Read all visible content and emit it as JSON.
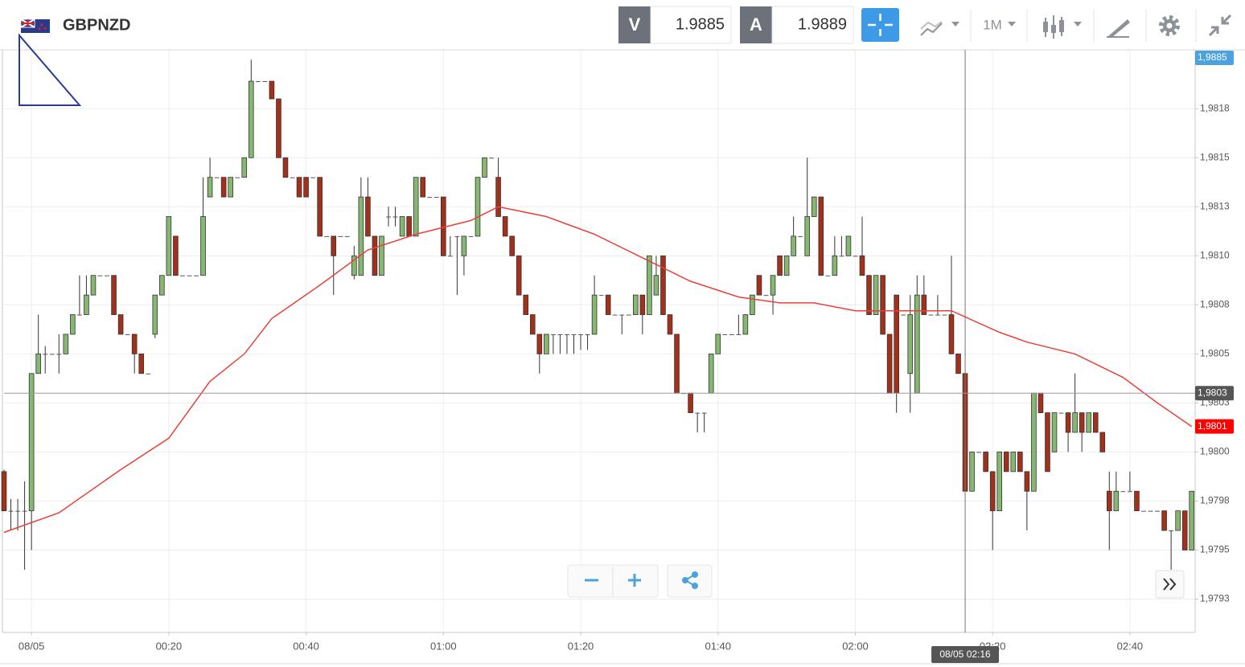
{
  "header": {
    "symbol": "GBPNZD",
    "bid_label": "V",
    "bid": 1.9885,
    "ask_label": "A",
    "ask": 1.9889,
    "timeframe": "1M"
  },
  "chart_data": {
    "type": "candlestick",
    "x": [
      -4,
      -3,
      -2,
      -1,
      0,
      1,
      2,
      3,
      4,
      5,
      6,
      7,
      8,
      9,
      10,
      11,
      12,
      13,
      14,
      15,
      16,
      17,
      18,
      19,
      20,
      21,
      22,
      23,
      24,
      25,
      26,
      27,
      28,
      29,
      30,
      31,
      32,
      33,
      34,
      35,
      36,
      37,
      38,
      39,
      40,
      41,
      42,
      43,
      44,
      45,
      46,
      47,
      48,
      49,
      50,
      51,
      52,
      53,
      54,
      55,
      56,
      57,
      58,
      59,
      60,
      61,
      62,
      63,
      64,
      65,
      66,
      67,
      68,
      69,
      70,
      71,
      72,
      73,
      74,
      75,
      76,
      77,
      78,
      79,
      80,
      81,
      82,
      83,
      84,
      85,
      86,
      87,
      88,
      89,
      90,
      91,
      92,
      93,
      94,
      95,
      96,
      97,
      98,
      99,
      100,
      101,
      102,
      103,
      104,
      105,
      106,
      107,
      108,
      109,
      110,
      111,
      112,
      113,
      114,
      115,
      116,
      117,
      118,
      119,
      120,
      121,
      122,
      123,
      124,
      125,
      126,
      127,
      128,
      129,
      130,
      131,
      132,
      133,
      134,
      135,
      136,
      137,
      138,
      139,
      140,
      141,
      142,
      143,
      144,
      145,
      146,
      147,
      148,
      149,
      150,
      151,
      152,
      153,
      154,
      155,
      156,
      157,
      158,
      159,
      160,
      161,
      162,
      163,
      164,
      165,
      166,
      167,
      168,
      169
    ],
    "open": [
      1.9799,
      1.9797,
      1.9797,
      1.9797,
      1.9797,
      1.9804,
      1.9805,
      1.9805,
      1.9805,
      1.9805,
      1.9806,
      1.9807,
      1.9807,
      1.9808,
      1.9809,
      1.9809,
      1.9809,
      1.9807,
      1.9806,
      1.9806,
      1.9805,
      1.9804,
      1.9806,
      1.9808,
      1.9809,
      1.9811,
      1.9809,
      1.9809,
      1.9809,
      1.9809,
      1.9813,
      1.9814,
      1.9814,
      1.9813,
      1.9814,
      1.9814,
      1.9815,
      1.98189,
      1.98189,
      1.98189,
      1.9818,
      1.9815,
      1.9814,
      1.9814,
      1.9814,
      1.9814,
      1.9814,
      1.9811,
      1.9811,
      1.9811,
      1.9811,
      1.9809,
      1.9809,
      1.9813,
      1.9811,
      1.9809,
      1.9812,
      1.9812,
      1.9811,
      1.9812,
      1.9811,
      1.9814,
      1.9813,
      1.9813,
      1.9813,
      1.981,
      1.9811,
      1.981,
      1.9811,
      1.9811,
      1.9814,
      1.9815,
      1.9814,
      1.9812,
      1.9811,
      1.981,
      1.9808,
      1.9807,
      1.9806,
      1.9805,
      1.9806,
      1.9806,
      1.9806,
      1.9806,
      1.9806,
      1.9806,
      1.9806,
      1.9808,
      1.9808,
      1.9807,
      1.9807,
      1.9807,
      1.9807,
      1.9808,
      1.9807,
      1.9808,
      1.981,
      1.9807,
      1.9806,
      1.9803,
      1.9803,
      1.9802,
      1.9802,
      1.9803,
      1.9805,
      1.9806,
      1.9806,
      1.9806,
      1.9806,
      1.9807,
      1.9809,
      1.9808,
      1.9808,
      1.981,
      1.9809,
      1.981,
      1.9811,
      1.981,
      1.9812,
      1.9813,
      1.9809,
      1.9809,
      1.981,
      1.981,
      1.981,
      1.981,
      1.9809,
      1.9807,
      1.9809,
      1.9806,
      1.9808,
      1.9807,
      1.9804,
      1.9803,
      1.9808,
      1.9807,
      1.9807,
      1.9807,
      1.9807,
      1.9805,
      1.9804,
      1.9798,
      1.98,
      1.98,
      1.9799,
      1.9797,
      1.98,
      1.9799,
      1.98,
      1.9799,
      1.9798,
      1.9803,
      1.9802,
      1.98,
      1.9802,
      1.9802,
      1.9801,
      1.9802,
      1.9801,
      1.9802,
      1.9801,
      1.9798,
      1.9797,
      1.9798,
      1.9798,
      1.9798,
      1.9797,
      1.9797,
      1.9797,
      1.9797,
      1.9796,
      1.9796,
      1.9797,
      1.9795
    ],
    "high": [
      1.97991,
      1.97976,
      1.97976,
      1.97985,
      1.9804,
      1.9807,
      1.98054,
      1.9805,
      1.9806,
      1.9806,
      1.9807,
      1.9809,
      1.9809,
      1.9809,
      1.9809,
      1.9809,
      1.9809,
      1.9807,
      1.9806,
      1.9806,
      1.9805,
      1.9804,
      1.9808,
      1.9809,
      1.9812,
      1.9811,
      1.9809,
      1.9809,
      1.9809,
      1.9814,
      1.9815,
      1.9814,
      1.9814,
      1.9814,
      1.9814,
      1.9815,
      1.982,
      1.98189,
      1.98189,
      1.98189,
      1.9818,
      1.9815,
      1.9814,
      1.9814,
      1.9814,
      1.9814,
      1.9814,
      1.9811,
      1.9811,
      1.9811,
      1.9811,
      1.98105,
      1.9814,
      1.9814,
      1.9811,
      1.9811,
      1.98125,
      1.98125,
      1.9812,
      1.9812,
      1.9814,
      1.9814,
      1.9813,
      1.9813,
      1.9813,
      1.9811,
      1.9811,
      1.9811,
      1.9811,
      1.9814,
      1.9815,
      1.9815,
      1.9815,
      1.9812,
      1.9811,
      1.981,
      1.9808,
      1.9807,
      1.9806,
      1.9806,
      1.9806,
      1.9806,
      1.9806,
      1.9806,
      1.9806,
      1.9806,
      1.9809,
      1.9808,
      1.9808,
      1.9807,
      1.9807,
      1.9807,
      1.9808,
      1.9808,
      1.981,
      1.981,
      1.981,
      1.9807,
      1.9806,
      1.9803,
      1.9803,
      1.9802,
      1.9802,
      1.9805,
      1.9806,
      1.9806,
      1.9806,
      1.9807,
      1.9807,
      1.9808,
      1.9809,
      1.9808,
      1.9809,
      1.981,
      1.981,
      1.9812,
      1.9811,
      1.9815,
      1.9813,
      1.9813,
      1.9809,
      1.9811,
      1.9811,
      1.9811,
      1.981,
      1.9812,
      1.9809,
      1.9809,
      1.9809,
      1.9806,
      1.9808,
      1.9807,
      1.9808,
      1.9809,
      1.9809,
      1.9807,
      1.9808,
      1.9807,
      1.981,
      1.9805,
      1.9804,
      1.98,
      1.98,
      1.98,
      1.9799,
      1.98,
      1.98,
      1.98,
      1.98,
      1.9799,
      1.9803,
      1.9803,
      1.9802,
      1.9802,
      1.9802,
      1.9802,
      1.9804,
      1.9802,
      1.9802,
      1.9802,
      1.9801,
      1.9799,
      1.9799,
      1.9798,
      1.9799,
      1.9798,
      1.9797,
      1.9797,
      1.9797,
      1.9797,
      1.9796,
      1.9797,
      1.9797,
      1.9798
    ],
    "low": [
      1.9797,
      1.9796,
      1.9796,
      1.9794,
      1.9795,
      1.9804,
      1.9804,
      1.9805,
      1.9804,
      1.9805,
      1.9806,
      1.9807,
      1.9807,
      1.9808,
      1.9809,
      1.9809,
      1.9807,
      1.9806,
      1.9806,
      1.9804,
      1.9804,
      1.9804,
      1.98058,
      1.9808,
      1.9809,
      1.9809,
      1.9809,
      1.9809,
      1.9809,
      1.9809,
      1.9813,
      1.9814,
      1.9813,
      1.9813,
      1.9814,
      1.9814,
      1.9815,
      1.98189,
      1.98189,
      1.9818,
      1.9815,
      1.9814,
      1.9814,
      1.9813,
      1.9813,
      1.9814,
      1.9811,
      1.9811,
      1.9808,
      1.9811,
      1.9811,
      1.98088,
      1.9809,
      1.9811,
      1.9809,
      1.9809,
      1.98115,
      1.98115,
      1.9811,
      1.9811,
      1.9811,
      1.9813,
      1.9813,
      1.9813,
      1.981,
      1.981,
      1.9808,
      1.9809,
      1.9811,
      1.9811,
      1.9814,
      1.9815,
      1.9812,
      1.9811,
      1.981,
      1.9808,
      1.9807,
      1.9806,
      1.9804,
      1.9805,
      1.9805,
      1.9805,
      1.9805,
      1.9805,
      1.98052,
      1.98052,
      1.9806,
      1.9808,
      1.9807,
      1.9807,
      1.9806,
      1.9807,
      1.9807,
      1.9806,
      1.9807,
      1.9808,
      1.9807,
      1.9806,
      1.9803,
      1.9803,
      1.9802,
      1.9801,
      1.9801,
      1.9803,
      1.9805,
      1.9806,
      1.9806,
      1.9806,
      1.9806,
      1.9807,
      1.9808,
      1.9808,
      1.9807,
      1.9809,
      1.9809,
      1.981,
      1.9811,
      1.981,
      1.9812,
      1.9809,
      1.9809,
      1.9809,
      1.981,
      1.981,
      1.981,
      1.9809,
      1.9807,
      1.9807,
      1.9806,
      1.9803,
      1.9802,
      1.9807,
      1.9802,
      1.9803,
      1.9807,
      1.9807,
      1.9807,
      1.9807,
      1.9805,
      1.9804,
      1.9798,
      1.9798,
      1.98,
      1.9799,
      1.9795,
      1.9797,
      1.9799,
      1.9799,
      1.9799,
      1.9796,
      1.9798,
      1.9802,
      1.9799,
      1.98,
      1.9802,
      1.98,
      1.9801,
      1.98,
      1.9801,
      1.9801,
      1.98,
      1.9795,
      1.9797,
      1.9798,
      1.9798,
      1.9797,
      1.9797,
      1.9797,
      1.9797,
      1.9796,
      1.9794,
      1.9796,
      1.9795,
      1.9795
    ],
    "close": [
      1.9797,
      1.9797,
      1.9797,
      1.9797,
      1.9804,
      1.9805,
      1.9805,
      1.9805,
      1.9805,
      1.9806,
      1.9807,
      1.9807,
      1.9808,
      1.9809,
      1.9809,
      1.9809,
      1.9807,
      1.9806,
      1.9806,
      1.9805,
      1.9804,
      1.9804,
      1.9808,
      1.9809,
      1.9812,
      1.9809,
      1.9809,
      1.9809,
      1.9809,
      1.9812,
      1.9814,
      1.9814,
      1.9813,
      1.9814,
      1.9814,
      1.9815,
      1.98189,
      1.98189,
      1.98189,
      1.9818,
      1.9815,
      1.9814,
      1.9814,
      1.9813,
      1.9813,
      1.9814,
      1.9811,
      1.9811,
      1.981,
      1.9811,
      1.9811,
      1.981,
      1.9813,
      1.9811,
      1.9809,
      1.9811,
      1.9812,
      1.9812,
      1.9812,
      1.9811,
      1.9814,
      1.9813,
      1.9813,
      1.9813,
      1.981,
      1.981,
      1.9811,
      1.9811,
      1.9811,
      1.9814,
      1.9815,
      1.9815,
      1.9812,
      1.9811,
      1.981,
      1.9808,
      1.9807,
      1.9806,
      1.9805,
      1.9806,
      1.9806,
      1.9806,
      1.9806,
      1.9806,
      1.9806,
      1.9806,
      1.9808,
      1.9808,
      1.9807,
      1.9807,
      1.9807,
      1.9807,
      1.9808,
      1.9807,
      1.981,
      1.9809,
      1.9807,
      1.9806,
      1.9803,
      1.9803,
      1.9802,
      1.9802,
      1.9802,
      1.9805,
      1.9806,
      1.9806,
      1.9806,
      1.9806,
      1.9807,
      1.9808,
      1.9808,
      1.9808,
      1.9809,
      1.9809,
      1.981,
      1.9811,
      1.9811,
      1.9812,
      1.9813,
      1.9809,
      1.9809,
      1.981,
      1.981,
      1.9811,
      1.981,
      1.9809,
      1.9807,
      1.9809,
      1.9806,
      1.9803,
      1.9803,
      1.9807,
      1.9807,
      1.9808,
      1.9807,
      1.9807,
      1.9807,
      1.9807,
      1.9805,
      1.9804,
      1.9798,
      1.98,
      1.98,
      1.9799,
      1.9797,
      1.98,
      1.9799,
      1.98,
      1.9799,
      1.9798,
      1.9803,
      1.9802,
      1.9799,
      1.9802,
      1.9802,
      1.9801,
      1.9802,
      1.9801,
      1.9802,
      1.9801,
      1.98,
      1.9797,
      1.9798,
      1.9798,
      1.9798,
      1.9797,
      1.9797,
      1.9797,
      1.9797,
      1.9796,
      1.9796,
      1.9797,
      1.9795,
      1.9798
    ],
    "up_color": "#86b872",
    "down_color": "#a3301b",
    "moving_average": {
      "color": "#e8413a",
      "x": [
        -4,
        4,
        13,
        20,
        26,
        31,
        35,
        42,
        49,
        56,
        64,
        68,
        75,
        82,
        89,
        96,
        103,
        109,
        114,
        120,
        127,
        134,
        141,
        145,
        152,
        159,
        164,
        169
      ],
      "values": [
        1.97959,
        1.97969,
        1.97991,
        1.98007,
        1.98036,
        1.9805,
        1.98068,
        1.98085,
        1.98103,
        1.98111,
        1.98118,
        1.98125,
        1.9812,
        1.98111,
        1.98099,
        1.98087,
        1.98079,
        1.98076,
        1.98076,
        1.98072,
        1.98072,
        1.98072,
        1.98061,
        1.98056,
        1.9805,
        1.98038,
        1.98025,
        1.98013
      ]
    },
    "xlim": [
      -4,
      169.5
    ],
    "xticks": [
      {
        "value": 0,
        "label": "08/05"
      },
      {
        "value": 20,
        "label": "00:20"
      },
      {
        "value": 40,
        "label": "00:40"
      },
      {
        "value": 60,
        "label": "01:00"
      },
      {
        "value": 80,
        "label": "01:20"
      },
      {
        "value": 100,
        "label": "01:40"
      },
      {
        "value": 120,
        "label": "02:00"
      },
      {
        "value": 140,
        "label": "02:20"
      },
      {
        "value": 160,
        "label": "02:40"
      }
    ],
    "ylim": [
      1.97908,
      1.98205
    ],
    "yticks": [
      {
        "value": 1.97925,
        "label": "1,9793"
      },
      {
        "value": 1.9795,
        "label": "1,9795"
      },
      {
        "value": 1.97975,
        "label": "1,9798"
      },
      {
        "value": 1.98,
        "label": "1,9800"
      },
      {
        "value": 1.98025,
        "label": "1,9803"
      },
      {
        "value": 1.9805,
        "label": "1,9805"
      },
      {
        "value": 1.98075,
        "label": "1,9808"
      },
      {
        "value": 1.981,
        "label": "1,9810"
      },
      {
        "value": 1.98125,
        "label": "1,9813"
      },
      {
        "value": 1.9815,
        "label": "1,9815"
      },
      {
        "value": 1.98175,
        "label": "1,9818"
      }
    ],
    "grid": true,
    "price_markers": [
      {
        "value": 1.9885,
        "label": "1,9885",
        "color": "#4aa3df"
      },
      {
        "value": 1.98013,
        "label": "1,9801",
        "color": "#ff0000"
      }
    ],
    "crosshair": {
      "x": 136,
      "x_label": "08/05 02:16",
      "y": 1.9803,
      "y_label": "1,9803"
    }
  }
}
